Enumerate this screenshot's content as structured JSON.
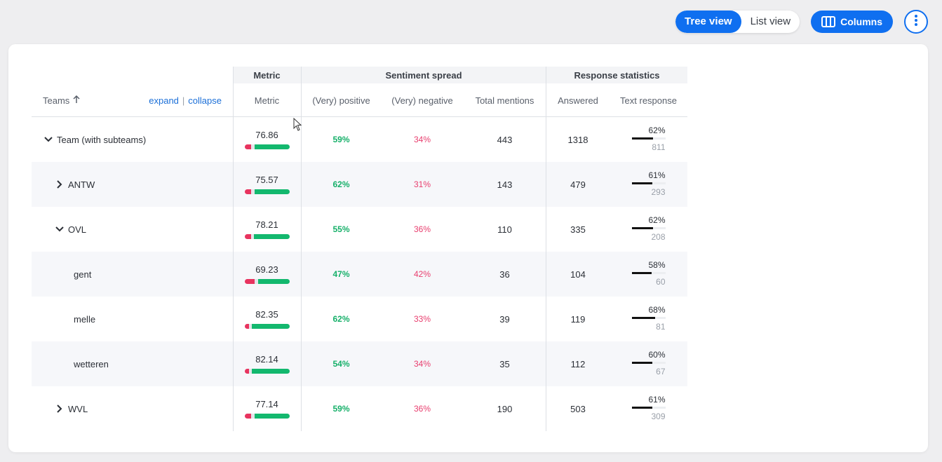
{
  "toolbar": {
    "tree_view_label": "Tree view",
    "list_view_label": "List view",
    "columns_label": "Columns",
    "more_icon": "vertical-ellipsis-icon",
    "columns_icon": "columns-icon"
  },
  "table": {
    "groups": {
      "metric": "Metric",
      "sentiment": "Sentiment spread",
      "response": "Response statistics"
    },
    "headers": {
      "teams": "Teams",
      "expand": "expand",
      "separator": "|",
      "collapse": "collapse",
      "metric": "Metric",
      "positive": "(Very) positive",
      "negative": "(Very) negative",
      "total": "Total mentions",
      "answered": "Answered",
      "text_response": "Text response"
    },
    "rows": [
      {
        "name": "Team (with subteams)",
        "chevron": "down",
        "metric": "76.86",
        "neg_frac": 0.14,
        "pos_frac": 0.78,
        "positive": "59%",
        "negative": "34%",
        "total": "443",
        "answered": "1318",
        "tr_pct": "62%",
        "tr_frac": 0.62,
        "tr_count": "811"
      },
      {
        "name": "ANTW",
        "chevron": "right",
        "metric": "75.57",
        "neg_frac": 0.14,
        "pos_frac": 0.78,
        "positive": "62%",
        "negative": "31%",
        "total": "143",
        "answered": "479",
        "tr_pct": "61%",
        "tr_frac": 0.61,
        "tr_count": "293"
      },
      {
        "name": "OVL",
        "chevron": "down",
        "metric": "78.21",
        "neg_frac": 0.14,
        "pos_frac": 0.8,
        "positive": "55%",
        "negative": "36%",
        "total": "110",
        "answered": "335",
        "tr_pct": "62%",
        "tr_frac": 0.62,
        "tr_count": "208"
      },
      {
        "name": "gent",
        "chevron": "",
        "metric": "69.23",
        "neg_frac": 0.22,
        "pos_frac": 0.7,
        "positive": "47%",
        "negative": "42%",
        "total": "36",
        "answered": "104",
        "tr_pct": "58%",
        "tr_frac": 0.58,
        "tr_count": "60"
      },
      {
        "name": "melle",
        "chevron": "",
        "metric": "82.35",
        "neg_frac": 0.1,
        "pos_frac": 0.85,
        "positive": "62%",
        "negative": "33%",
        "total": "39",
        "answered": "119",
        "tr_pct": "68%",
        "tr_frac": 0.68,
        "tr_count": "81"
      },
      {
        "name": "wetteren",
        "chevron": "",
        "metric": "82.14",
        "neg_frac": 0.1,
        "pos_frac": 0.84,
        "positive": "54%",
        "negative": "34%",
        "total": "35",
        "answered": "112",
        "tr_pct": "60%",
        "tr_frac": 0.6,
        "tr_count": "67"
      },
      {
        "name": "WVL",
        "chevron": "right",
        "metric": "77.14",
        "neg_frac": 0.14,
        "pos_frac": 0.78,
        "positive": "59%",
        "negative": "36%",
        "total": "190",
        "answered": "503",
        "tr_pct": "61%",
        "tr_frac": 0.61,
        "tr_count": "309"
      }
    ]
  },
  "colors": {
    "accent": "#0f6ff0",
    "positive": "#17b06a",
    "negative": "#e83e6e"
  }
}
